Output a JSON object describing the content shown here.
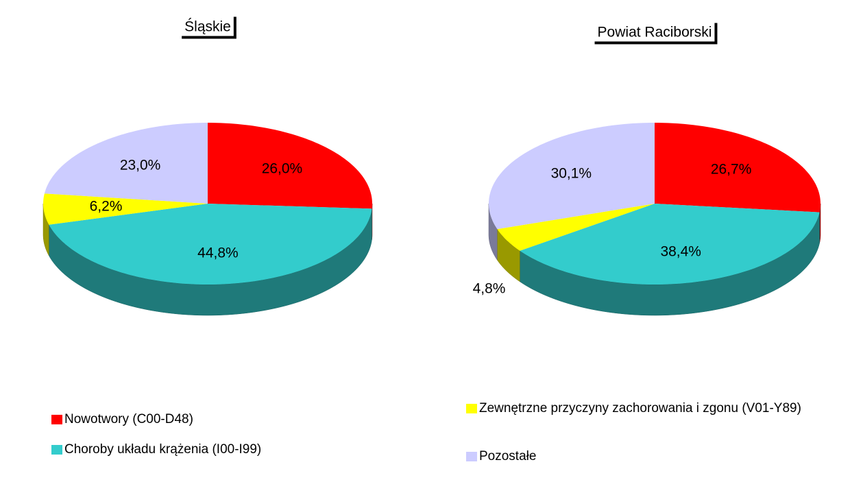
{
  "chart_data": [
    {
      "type": "pie",
      "title": "Śląskie",
      "categories": [
        "Nowotwory (C00-D48)",
        "Choroby układu krążenia (I00-I99)",
        "Zewnętrzne przyczyny zachorowania i zgonu (V01-Y89)",
        "Pozostałe"
      ],
      "values": [
        26.0,
        44.8,
        6.2,
        23.0
      ],
      "value_labels": [
        "26,0%",
        "44,8%",
        "6,2%",
        "23,0%"
      ],
      "colors": [
        "#ff0000",
        "#33cccc",
        "#ffff00",
        "#ccccff"
      ]
    },
    {
      "type": "pie",
      "title": "Powiat  Raciborski",
      "values": [
        26.7,
        38.4,
        4.8,
        30.1
      ],
      "value_labels": [
        "26,7%",
        "38,4%",
        "4,8%",
        "30,1%"
      ],
      "colors": [
        "#ff0000",
        "#33cccc",
        "#ffff00",
        "#ccccff"
      ]
    }
  ]
}
